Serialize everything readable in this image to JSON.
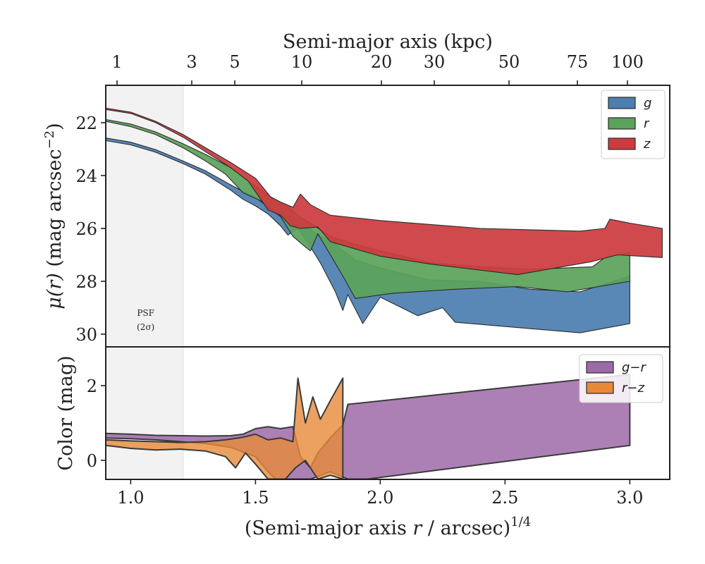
{
  "chart_data": [
    {
      "type": "area",
      "panel": "surface-brightness-profile",
      "xlabel": "(Semi-major axis r / arcsec)^1/4",
      "ylabel": "μ(r) (mag arcsec^-2)",
      "top_xlabel": "Semi-major axis (kpc)",
      "top_ticks": [
        "1",
        "3",
        "5",
        "10",
        "20",
        "30",
        "50",
        "75",
        "100"
      ],
      "y_ticks": [
        "22",
        "24",
        "26",
        "28",
        "30"
      ],
      "ylim": [
        30.5,
        20.7
      ],
      "y_inverted": true,
      "psf_label": "PSF",
      "psf_sublabel": "(2σ)",
      "psf_range": [
        0.9,
        1.21
      ],
      "legend_position": "upper right",
      "series": [
        {
          "name": "g",
          "color": "#4c7fb0",
          "upper": [
            [
              0.9,
              22.58
            ],
            [
              1.0,
              22.74
            ],
            [
              1.1,
              23.02
            ],
            [
              1.21,
              23.45
            ],
            [
              1.3,
              23.82
            ],
            [
              1.4,
              24.35
            ],
            [
              1.45,
              24.6
            ],
            [
              1.5,
              24.82
            ],
            [
              1.55,
              25.2
            ],
            [
              1.6,
              25.55
            ],
            [
              1.65,
              25.6
            ],
            [
              1.7,
              25.9
            ],
            [
              1.75,
              26.25
            ],
            [
              1.8,
              26.45
            ],
            [
              1.9,
              27.2
            ],
            [
              2.0,
              27.5
            ],
            [
              2.2,
              27.95
            ],
            [
              2.4,
              28.0
            ],
            [
              2.6,
              28.3
            ],
            [
              2.8,
              28.4
            ],
            [
              3.0,
              27.8
            ]
          ],
          "lower": [
            [
              0.9,
              22.68
            ],
            [
              1.0,
              22.84
            ],
            [
              1.1,
              23.12
            ],
            [
              1.21,
              23.55
            ],
            [
              1.3,
              23.95
            ],
            [
              1.4,
              24.55
            ],
            [
              1.45,
              24.9
            ],
            [
              1.5,
              25.15
            ],
            [
              1.55,
              25.45
            ],
            [
              1.6,
              25.9
            ],
            [
              1.63,
              26.25
            ],
            [
              1.67,
              26.0
            ],
            [
              1.72,
              26.7
            ],
            [
              1.76,
              27.3
            ],
            [
              1.82,
              28.4
            ],
            [
              1.85,
              29.1
            ],
            [
              1.87,
              28.5
            ],
            [
              1.93,
              29.6
            ],
            [
              2.0,
              28.6
            ],
            [
              2.15,
              29.3
            ],
            [
              2.25,
              29.0
            ],
            [
              2.3,
              29.55
            ],
            [
              2.8,
              29.95
            ],
            [
              3.0,
              29.6
            ]
          ]
        },
        {
          "name": "r",
          "color": "#5ba35b",
          "upper": [
            [
              0.9,
              21.88
            ],
            [
              1.0,
              22.05
            ],
            [
              1.1,
              22.35
            ],
            [
              1.21,
              22.8
            ],
            [
              1.3,
              23.2
            ],
            [
              1.4,
              23.7
            ],
            [
              1.5,
              24.4
            ],
            [
              1.58,
              24.95
            ],
            [
              1.62,
              25.1
            ],
            [
              1.67,
              25.5
            ],
            [
              1.72,
              25.8
            ],
            [
              1.8,
              26.3
            ],
            [
              1.9,
              26.6
            ],
            [
              2.0,
              26.85
            ],
            [
              2.2,
              27.3
            ],
            [
              2.4,
              27.45
            ],
            [
              2.6,
              27.55
            ],
            [
              2.85,
              27.45
            ],
            [
              2.9,
              27.1
            ],
            [
              3.0,
              26.9
            ]
          ],
          "lower": [
            [
              0.9,
              21.95
            ],
            [
              1.0,
              22.15
            ],
            [
              1.1,
              22.45
            ],
            [
              1.21,
              22.95
            ],
            [
              1.3,
              23.45
            ],
            [
              1.38,
              23.95
            ],
            [
              1.45,
              24.65
            ],
            [
              1.52,
              24.95
            ],
            [
              1.6,
              25.55
            ],
            [
              1.65,
              26.3
            ],
            [
              1.7,
              26.7
            ],
            [
              1.72,
              26.85
            ],
            [
              1.75,
              26.2
            ],
            [
              1.8,
              27.0
            ],
            [
              1.85,
              27.8
            ],
            [
              1.9,
              28.65
            ],
            [
              2.05,
              28.45
            ],
            [
              2.3,
              28.3
            ],
            [
              2.55,
              28.2
            ],
            [
              2.75,
              28.4
            ],
            [
              3.0,
              28.0
            ]
          ]
        },
        {
          "name": "z",
          "color": "#cc3b3e",
          "upper": [
            [
              0.9,
              21.45
            ],
            [
              1.0,
              21.6
            ],
            [
              1.1,
              21.95
            ],
            [
              1.21,
              22.45
            ],
            [
              1.3,
              22.95
            ],
            [
              1.4,
              23.5
            ],
            [
              1.5,
              24.1
            ],
            [
              1.56,
              24.8
            ],
            [
              1.6,
              25.0
            ],
            [
              1.65,
              25.2
            ],
            [
              1.68,
              24.7
            ],
            [
              1.72,
              25.1
            ],
            [
              1.8,
              25.5
            ],
            [
              1.9,
              25.6
            ],
            [
              2.0,
              25.7
            ],
            [
              2.2,
              25.85
            ],
            [
              2.4,
              26.0
            ],
            [
              2.6,
              26.05
            ],
            [
              2.8,
              26.1
            ],
            [
              2.9,
              26.0
            ],
            [
              2.92,
              25.65
            ],
            [
              3.0,
              25.8
            ],
            [
              3.13,
              26.0
            ]
          ],
          "lower": [
            [
              0.9,
              21.5
            ],
            [
              1.0,
              21.65
            ],
            [
              1.1,
              22.0
            ],
            [
              1.21,
              22.55
            ],
            [
              1.3,
              23.1
            ],
            [
              1.4,
              23.7
            ],
            [
              1.47,
              24.2
            ],
            [
              1.55,
              25.3
            ],
            [
              1.6,
              25.5
            ],
            [
              1.64,
              25.9
            ],
            [
              1.68,
              26.0
            ],
            [
              1.75,
              25.95
            ],
            [
              1.8,
              26.5
            ],
            [
              2.0,
              27.05
            ],
            [
              2.2,
              27.35
            ],
            [
              2.55,
              27.75
            ],
            [
              2.85,
              27.25
            ],
            [
              2.95,
              27.0
            ],
            [
              3.13,
              27.1
            ]
          ]
        }
      ]
    },
    {
      "type": "area",
      "panel": "color-profile",
      "xlabel": "(Semi-major axis r / arcsec)^1/4",
      "ylabel": "Color (mag)",
      "x_ticks": [
        "1.0",
        "1.5",
        "2.0",
        "2.5",
        "3.0"
      ],
      "xlim": [
        0.9,
        3.16
      ],
      "y_ticks": [
        "0",
        "2"
      ],
      "ylim": [
        -0.5,
        2.9
      ],
      "legend_position": "upper right",
      "series": [
        {
          "name": "g−r",
          "color": "#9d6aa8",
          "upper": [
            [
              0.9,
              0.72
            ],
            [
              1.0,
              0.7
            ],
            [
              1.1,
              0.67
            ],
            [
              1.2,
              0.66
            ],
            [
              1.3,
              0.65
            ],
            [
              1.4,
              0.66
            ],
            [
              1.45,
              0.7
            ],
            [
              1.5,
              0.85
            ],
            [
              1.55,
              0.9
            ],
            [
              1.6,
              0.85
            ],
            [
              1.65,
              0.9
            ],
            [
              1.68,
              0.1
            ],
            [
              1.72,
              -0.2
            ],
            [
              1.75,
              0.2
            ],
            [
              1.8,
              0.6
            ],
            [
              1.85,
              0.95
            ],
            [
              1.87,
              1.5
            ],
            [
              3.0,
              2.3
            ]
          ],
          "lower": [
            [
              0.9,
              0.6
            ],
            [
              1.0,
              0.58
            ],
            [
              1.1,
              0.55
            ],
            [
              1.2,
              0.5
            ],
            [
              1.3,
              0.45
            ],
            [
              1.4,
              0.35
            ],
            [
              1.5,
              0.1
            ],
            [
              1.55,
              -0.3
            ],
            [
              1.58,
              -0.5
            ],
            [
              1.63,
              -0.5
            ],
            [
              1.68,
              -0.5
            ],
            [
              1.72,
              -0.5
            ],
            [
              1.8,
              -0.3
            ],
            [
              1.87,
              -0.5
            ],
            [
              1.95,
              -0.5
            ],
            [
              3.0,
              0.4
            ]
          ]
        },
        {
          "name": "r−z",
          "color": "#e8893a",
          "upper": [
            [
              0.9,
              0.55
            ],
            [
              1.0,
              0.52
            ],
            [
              1.1,
              0.5
            ],
            [
              1.2,
              0.48
            ],
            [
              1.3,
              0.5
            ],
            [
              1.38,
              0.55
            ],
            [
              1.45,
              0.62
            ],
            [
              1.5,
              0.7
            ],
            [
              1.55,
              0.55
            ],
            [
              1.6,
              0.6
            ],
            [
              1.65,
              0.5
            ],
            [
              1.67,
              2.2
            ],
            [
              1.7,
              1.0
            ],
            [
              1.73,
              1.7
            ],
            [
              1.76,
              1.1
            ],
            [
              1.8,
              1.6
            ],
            [
              1.85,
              2.2
            ]
          ],
          "lower": [
            [
              0.9,
              0.4
            ],
            [
              1.0,
              0.32
            ],
            [
              1.1,
              0.28
            ],
            [
              1.2,
              0.3
            ],
            [
              1.3,
              0.25
            ],
            [
              1.38,
              0.1
            ],
            [
              1.42,
              -0.2
            ],
            [
              1.46,
              0.2
            ],
            [
              1.5,
              -0.1
            ],
            [
              1.55,
              -0.5
            ],
            [
              1.62,
              -0.5
            ],
            [
              1.66,
              -0.2
            ],
            [
              1.7,
              0.0
            ],
            [
              1.75,
              -0.5
            ],
            [
              1.8,
              -0.4
            ],
            [
              1.85,
              -0.5
            ]
          ]
        }
      ]
    }
  ]
}
